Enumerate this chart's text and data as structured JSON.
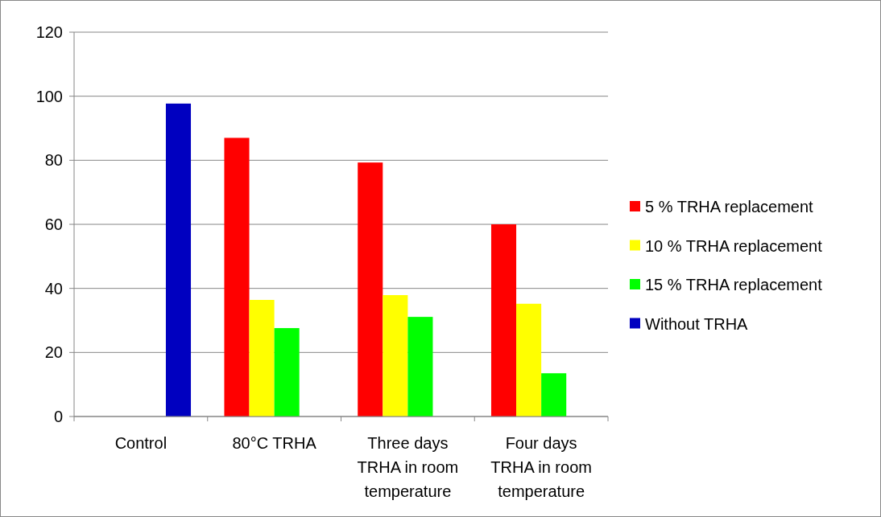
{
  "chart_data": {
    "type": "bar",
    "categories": [
      "Control",
      "80°C TRHA",
      "Three days TRHA in room temperature",
      "Four days TRHA in room temperature"
    ],
    "series": [
      {
        "name": "5 % TRHA replacement",
        "color": "#ff0000",
        "values": [
          null,
          87,
          79.3,
          60
        ]
      },
      {
        "name": "10 % TRHA replacement",
        "color": "#ffff00",
        "values": [
          null,
          36.4,
          37.9,
          35.2
        ]
      },
      {
        "name": "15 % TRHA replacement",
        "color": "#00ff00",
        "values": [
          null,
          27.6,
          31.1,
          13.5
        ]
      },
      {
        "name": "Without TRHA",
        "color": "#0000c0",
        "values": [
          97.7,
          null,
          null,
          null
        ]
      }
    ],
    "ylim": [
      0,
      120
    ],
    "yticks": [
      0,
      20,
      40,
      60,
      80,
      100,
      120
    ],
    "grid": "y",
    "legend": "right"
  }
}
